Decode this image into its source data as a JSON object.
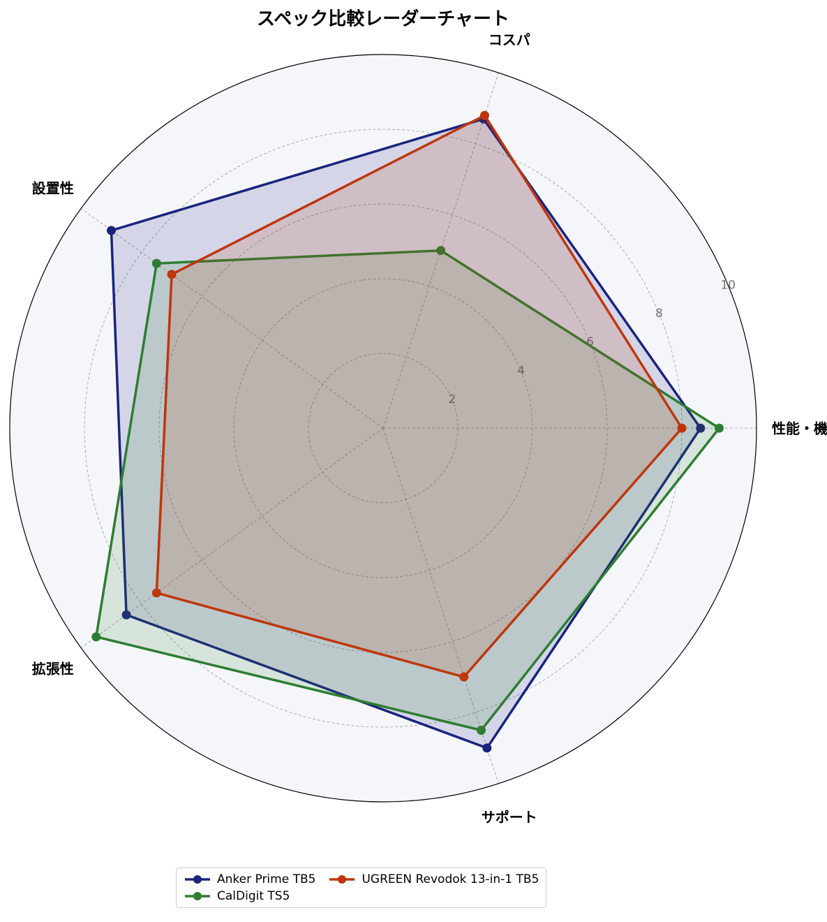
{
  "chart_data": {
    "type": "radar",
    "title": "スペック比較レーダーチャート",
    "categories": [
      "性能・機能",
      "コスパ",
      "設置性",
      "拡張性",
      "サポート"
    ],
    "ylim": [
      0,
      10
    ],
    "yticks": [
      2,
      4,
      6,
      8,
      10
    ],
    "grid": true,
    "series": [
      {
        "name": "Anker Prime TB5",
        "color": "#1a237e",
        "values": [
          8.5,
          8.7,
          9.0,
          8.5,
          9.0
        ]
      },
      {
        "name": "CalDigit TS5",
        "color": "#2e7d32",
        "values": [
          9.0,
          5.0,
          7.5,
          9.5,
          8.5
        ]
      },
      {
        "name": "UGREEN Revodok 13-in-1 TB5",
        "color": "#bf360c",
        "values": [
          8.0,
          8.8,
          7.0,
          7.5,
          7.0
        ]
      }
    ]
  }
}
